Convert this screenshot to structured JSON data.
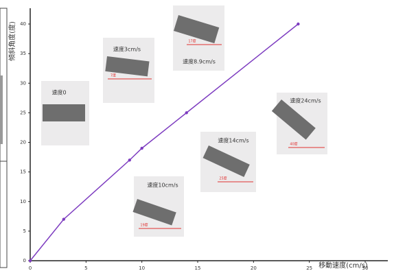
{
  "chart_data": {
    "type": "line",
    "x_label": "移動速度(cm/s)",
    "y_label": "傾斜角度(度)",
    "x": [
      0,
      3,
      8.9,
      10,
      14,
      24
    ],
    "series": [
      {
        "color": "#7d3cc0",
        "values": [
          0,
          7,
          17,
          19,
          25,
          40
        ]
      }
    ],
    "xlim": [
      0,
      30
    ],
    "xticks": [
      0,
      5,
      10,
      15,
      20,
      25,
      30
    ],
    "ylim": [
      0,
      40
    ],
    "yticks": [
      0,
      5,
      10,
      15,
      20,
      25,
      30,
      35,
      40
    ],
    "annotations": [
      {
        "label": "速度0"
      },
      {
        "label": "速度3cm/s",
        "angle": "7度"
      },
      {
        "label": "速度8.9cm/s",
        "angle": "17度"
      },
      {
        "label": "速度10cm/s",
        "angle": "19度"
      },
      {
        "label": "速度14cm/s",
        "angle": "25度"
      },
      {
        "label": "速度24cm/s",
        "angle": "40度"
      }
    ]
  }
}
